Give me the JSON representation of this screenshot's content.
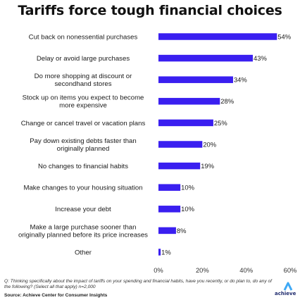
{
  "title": "Tariffs force tough financial choices",
  "chart_data": {
    "type": "bar",
    "orientation": "horizontal",
    "categories": [
      [
        "Cut back on nonessential purchases"
      ],
      [
        "Delay or avoid large purchases"
      ],
      [
        "Do more shopping at discount or",
        "secondhand stores"
      ],
      [
        "Stock up on items you expect to become",
        "more expensive"
      ],
      [
        "Change or cancel travel or vacation plans"
      ],
      [
        "Pay down existing debts faster than",
        "originally planned"
      ],
      [
        "No changes to financial habits"
      ],
      [
        "Make changes to your housing situation"
      ],
      [
        "Increase your debt"
      ],
      [
        "Make a large purchase sooner than",
        "originally planned before its price increases"
      ],
      [
        "Other"
      ]
    ],
    "values": [
      54,
      43,
      34,
      28,
      25,
      20,
      19,
      10,
      10,
      8,
      1
    ],
    "value_labels": [
      "54%",
      "43%",
      "34%",
      "28%",
      "25%",
      "20%",
      "19%",
      "10%",
      "10%",
      "8%",
      "1%"
    ],
    "xlim": [
      0,
      60
    ],
    "xticks": [
      "0%",
      "20%",
      "40%",
      "60%"
    ],
    "grid": false,
    "bar_color": "#3a1ff0"
  },
  "footnote": "Q: Thinking specifically about the impact of tariffs on your spending and financial habits, have you recently, or do plan to, do any of the following? (Select all that apply) n=2,000",
  "source": "Source: Achieve Center for Consumer Insights",
  "logo": {
    "text": "achieve",
    "icon": "achieve-chevron-icon",
    "color": "#1f2b6e",
    "accent": "#3fa9f5"
  }
}
